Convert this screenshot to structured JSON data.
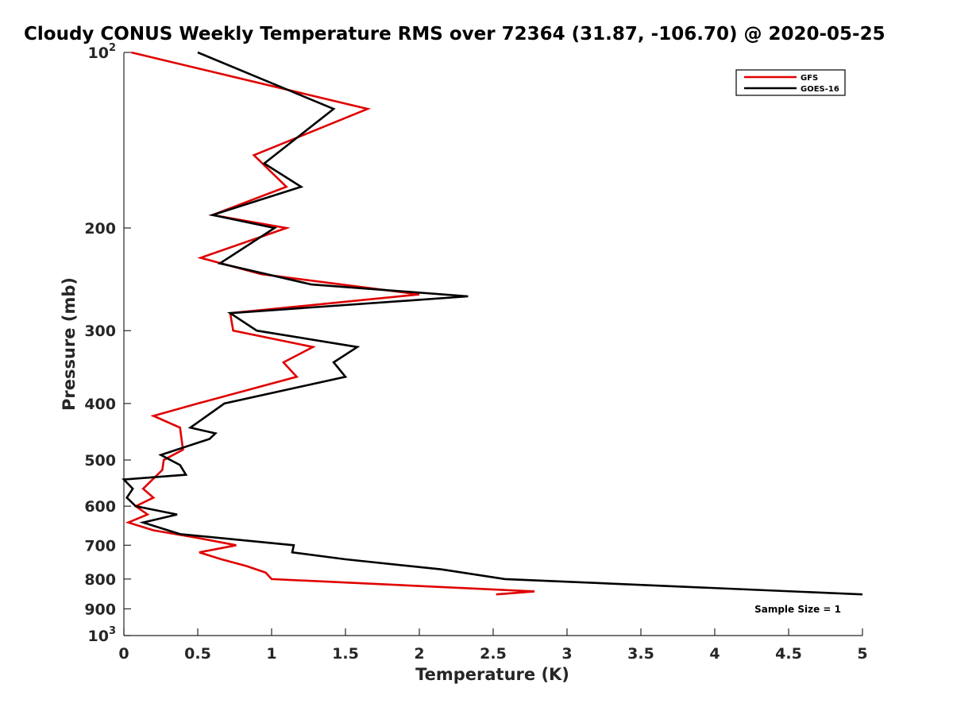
{
  "chart_data": {
    "type": "line",
    "title": "Cloudy CONUS Weekly Temperature RMS over 72364 (31.87, -106.70) @ 2020-05-25",
    "xlabel": "Temperature (K)",
    "ylabel": "Pressure (mb)",
    "xlim": [
      0,
      5
    ],
    "ylim": [
      100,
      1000
    ],
    "y_scale": "log",
    "y_reversed": true,
    "grid": false,
    "legend_position": "top-right",
    "x_ticks": [
      "0",
      "0.5",
      "1",
      "1.5",
      "2",
      "2.5",
      "3",
      "3.5",
      "4",
      "4.5",
      "5"
    ],
    "x_tick_values": [
      0,
      0.5,
      1,
      1.5,
      2,
      2.5,
      3,
      3.5,
      4,
      4.5,
      5
    ],
    "y_ticks": [
      {
        "value": 100,
        "base": "10",
        "exp": "2"
      },
      {
        "value": 200,
        "label": "200"
      },
      {
        "value": 300,
        "label": "300"
      },
      {
        "value": 400,
        "label": "400"
      },
      {
        "value": 500,
        "label": "500"
      },
      {
        "value": 600,
        "label": "600"
      },
      {
        "value": 700,
        "label": "700"
      },
      {
        "value": 800,
        "label": "800"
      },
      {
        "value": 900,
        "label": "900"
      },
      {
        "value": 1000,
        "base": "10",
        "exp": "3"
      }
    ],
    "annotation": "Sample Size = 1",
    "series": [
      {
        "name": "GFS",
        "color": "#e00000",
        "points": [
          [
            0.05,
            100
          ],
          [
            1.65,
            125
          ],
          [
            0.88,
            150
          ],
          [
            1.1,
            170
          ],
          [
            0.6,
            190
          ],
          [
            1.1,
            200
          ],
          [
            0.52,
            225
          ],
          [
            0.93,
            240
          ],
          [
            2.0,
            260
          ],
          [
            0.72,
            280
          ],
          [
            0.74,
            300
          ],
          [
            1.28,
            320
          ],
          [
            1.08,
            340
          ],
          [
            1.17,
            360
          ],
          [
            0.5,
            400
          ],
          [
            0.2,
            420
          ],
          [
            0.38,
            440
          ],
          [
            0.4,
            480
          ],
          [
            0.27,
            500
          ],
          [
            0.26,
            520
          ],
          [
            0.13,
            560
          ],
          [
            0.2,
            580
          ],
          [
            0.08,
            600
          ],
          [
            0.16,
            620
          ],
          [
            0.03,
            640
          ],
          [
            0.2,
            660
          ],
          [
            0.5,
            680
          ],
          [
            0.76,
            700
          ],
          [
            0.51,
            720
          ],
          [
            0.66,
            740
          ],
          [
            0.83,
            760
          ],
          [
            0.96,
            780
          ],
          [
            1.0,
            800
          ],
          [
            2.78,
            840
          ],
          [
            2.52,
            850
          ]
        ]
      },
      {
        "name": "GOES-16",
        "color": "#000000",
        "points": [
          [
            0.5,
            100
          ],
          [
            1.42,
            125
          ],
          [
            0.95,
            155
          ],
          [
            1.2,
            170
          ],
          [
            0.6,
            190
          ],
          [
            1.02,
            200
          ],
          [
            0.65,
            230
          ],
          [
            1.27,
            250
          ],
          [
            2.33,
            262
          ],
          [
            0.72,
            280
          ],
          [
            0.9,
            300
          ],
          [
            1.58,
            320
          ],
          [
            1.42,
            340
          ],
          [
            1.5,
            360
          ],
          [
            0.68,
            400
          ],
          [
            0.45,
            440
          ],
          [
            0.62,
            450
          ],
          [
            0.58,
            460
          ],
          [
            0.25,
            490
          ],
          [
            0.38,
            510
          ],
          [
            0.42,
            530
          ],
          [
            0.0,
            540
          ],
          [
            0.06,
            560
          ],
          [
            0.02,
            580
          ],
          [
            0.08,
            600
          ],
          [
            0.36,
            620
          ],
          [
            0.13,
            640
          ],
          [
            0.38,
            670
          ],
          [
            1.15,
            700
          ],
          [
            1.14,
            720
          ],
          [
            1.5,
            740
          ],
          [
            2.15,
            770
          ],
          [
            2.58,
            800
          ],
          [
            5.0,
            850
          ]
        ]
      }
    ]
  }
}
